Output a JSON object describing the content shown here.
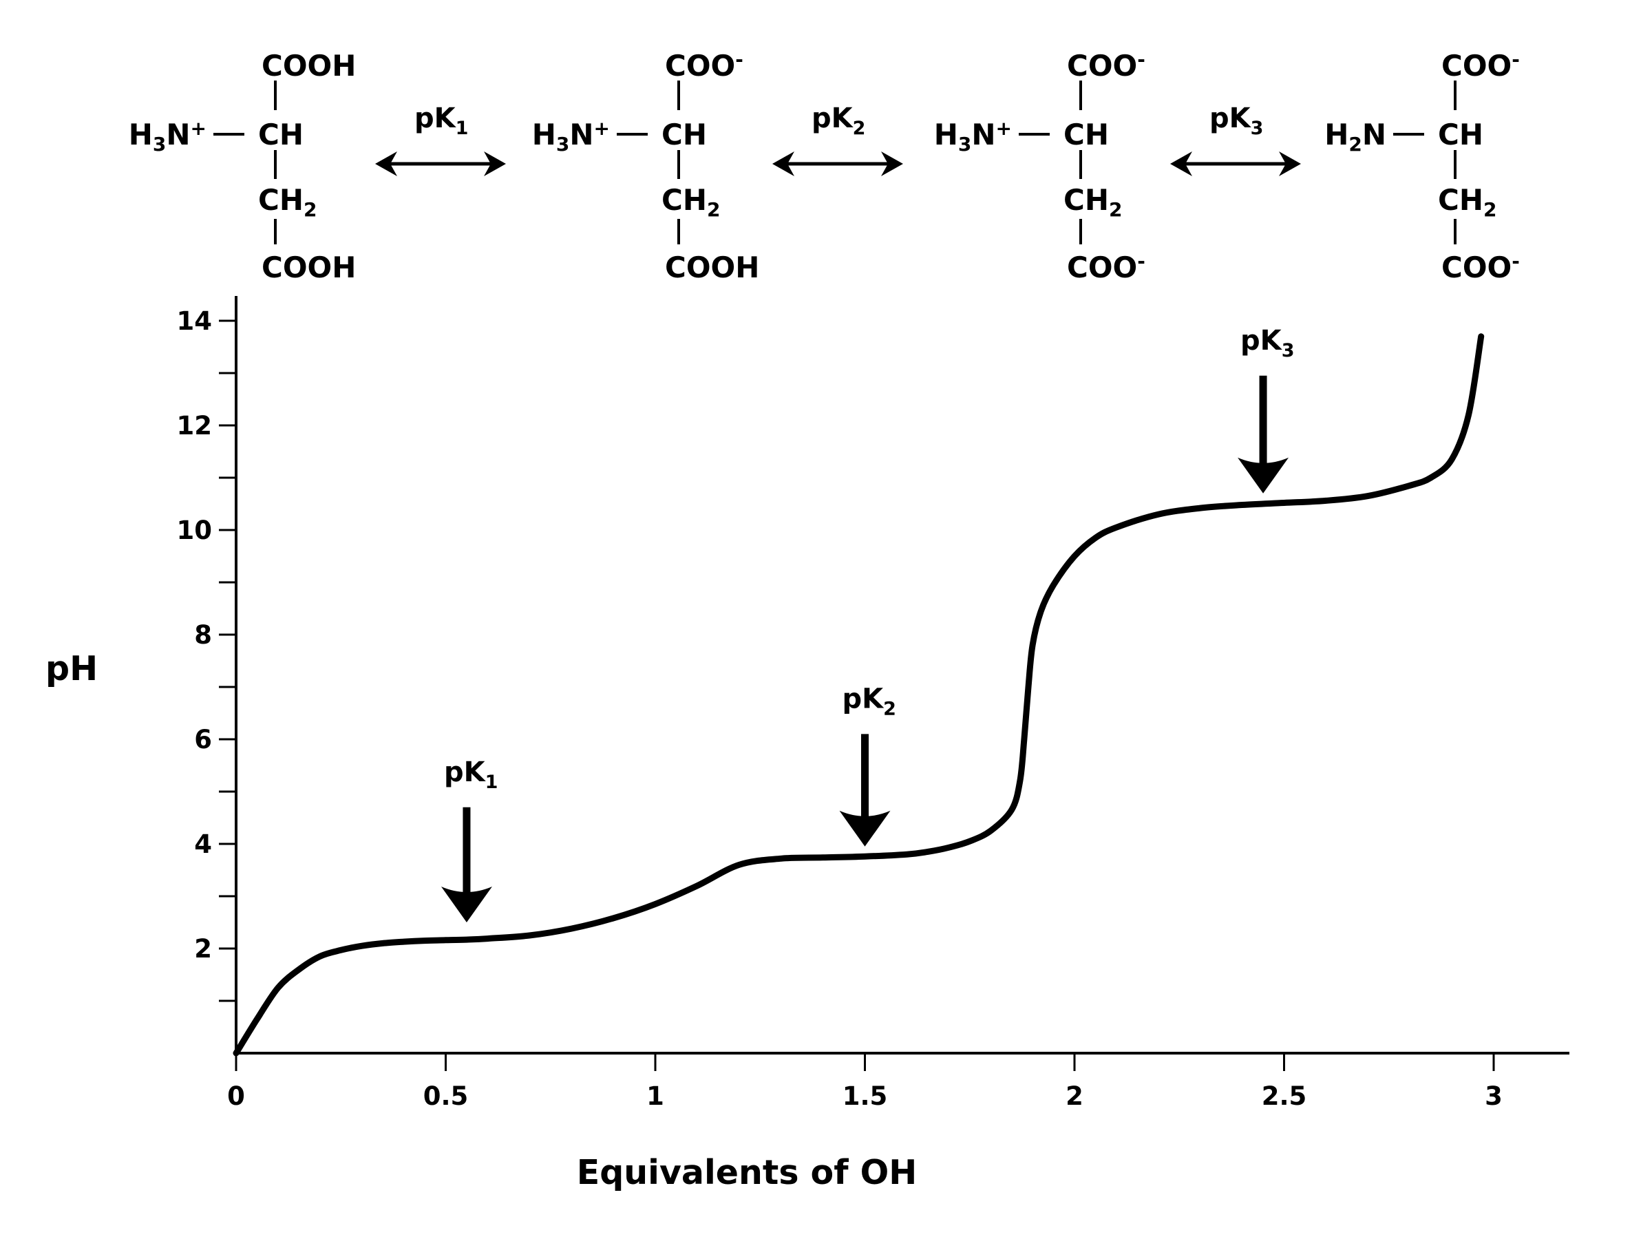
{
  "chart_data": {
    "type": "line",
    "title": "",
    "xlabel": "Equivalents of OH",
    "ylabel": "pH",
    "xlim": [
      0,
      3.2
    ],
    "ylim": [
      0,
      14.5
    ],
    "x_ticks": [
      0,
      0.5,
      1,
      1.5,
      2,
      2.5,
      3
    ],
    "x_tick_labels": [
      "0",
      "0.5",
      "1",
      "1.5",
      "2",
      "2.5",
      "3"
    ],
    "y_ticks_labeled": [
      2,
      4,
      6,
      8,
      10,
      12,
      14
    ],
    "y_tick_labels": [
      "2",
      "4",
      "6",
      "8",
      "10",
      "12",
      "14"
    ],
    "y_ticks_minor": [
      1,
      3,
      5,
      7,
      9,
      11,
      13
    ],
    "grid": false,
    "legend": "none",
    "series": [
      {
        "x": [
          0.0,
          0.05,
          0.1,
          0.15,
          0.2,
          0.25,
          0.3,
          0.35,
          0.4,
          0.45,
          0.5,
          0.55,
          0.6,
          0.7,
          0.8,
          0.9,
          1.0,
          1.1,
          1.2,
          1.3,
          1.4,
          1.5,
          1.6,
          1.65,
          1.7,
          1.75,
          1.8,
          1.85,
          1.87,
          1.88,
          1.89,
          1.9,
          1.92,
          1.95,
          2.0,
          2.05,
          2.1,
          2.2,
          2.3,
          2.4,
          2.5,
          2.6,
          2.7,
          2.8,
          2.85,
          2.9,
          2.94,
          2.97
        ],
        "y": [
          0.0,
          0.65,
          1.25,
          1.6,
          1.85,
          1.97,
          2.05,
          2.1,
          2.13,
          2.15,
          2.16,
          2.17,
          2.19,
          2.25,
          2.38,
          2.58,
          2.85,
          3.2,
          3.6,
          3.72,
          3.74,
          3.76,
          3.8,
          3.85,
          3.93,
          4.05,
          4.25,
          4.65,
          5.2,
          6.0,
          7.0,
          7.8,
          8.45,
          8.95,
          9.5,
          9.85,
          10.05,
          10.3,
          10.42,
          10.48,
          10.52,
          10.56,
          10.65,
          10.85,
          11.0,
          11.35,
          12.2,
          13.7
        ]
      }
    ],
    "annotations": [
      {
        "label": "pK",
        "sub": "1",
        "x": 0.55,
        "y_tip": 2.5,
        "y_tail": 4.7
      },
      {
        "label": "pK",
        "sub": "2",
        "x": 1.5,
        "y_tip": 3.95,
        "y_tail": 6.1
      },
      {
        "label": "pK",
        "sub": "3",
        "x": 2.45,
        "y_tip": 10.7,
        "y_tail": 12.95
      }
    ]
  },
  "scheme": {
    "equilibria": [
      {
        "label": "pK",
        "sub": "1"
      },
      {
        "label": "pK",
        "sub": "2"
      },
      {
        "label": "pK",
        "sub": "3"
      }
    ],
    "structures": [
      {
        "amine": "H",
        "amine_sub": "3",
        "amine_rest": "N",
        "amine_charge": "+",
        "top": "COOH",
        "top_charge": "",
        "bottom": "COOH",
        "bottom_charge": ""
      },
      {
        "amine": "H",
        "amine_sub": "3",
        "amine_rest": "N",
        "amine_charge": "+",
        "top": "COO",
        "top_charge": "-",
        "bottom": "COOH",
        "bottom_charge": ""
      },
      {
        "amine": "H",
        "amine_sub": "3",
        "amine_rest": "N",
        "amine_charge": "+",
        "top": "COO",
        "top_charge": "-",
        "bottom": "COO",
        "bottom_charge": "-"
      },
      {
        "amine": "H",
        "amine_sub": "2",
        "amine_rest": "N",
        "amine_charge": "",
        "top": "COO",
        "top_charge": "-",
        "bottom": "COO",
        "bottom_charge": "-"
      }
    ],
    "ch_label": "CH",
    "ch2_label": "CH",
    "ch2_sub": "2"
  }
}
